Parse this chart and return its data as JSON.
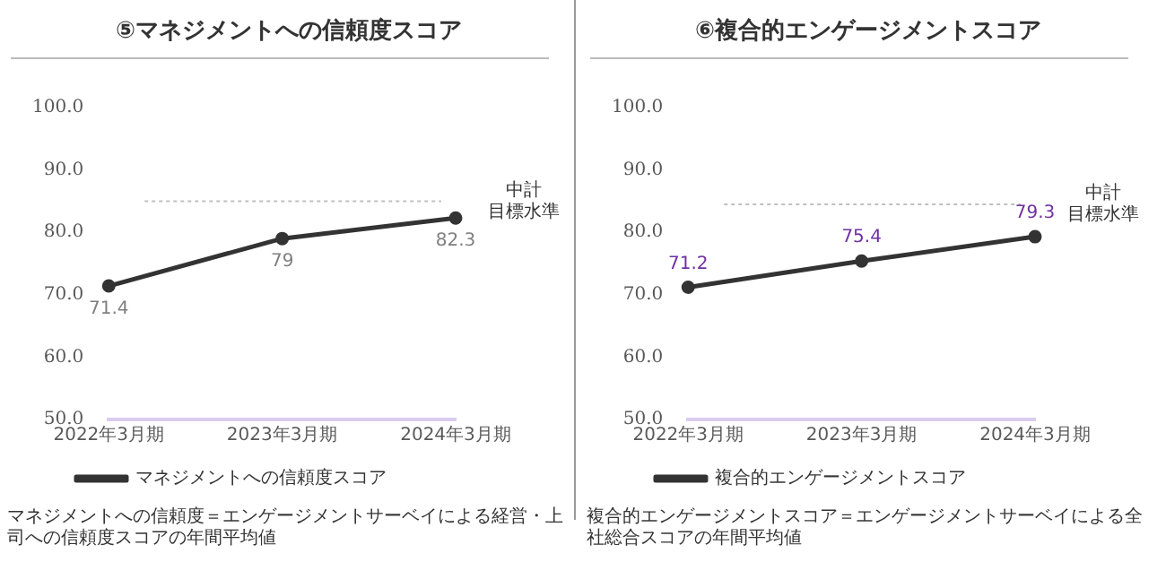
{
  "chart_data": [
    {
      "type": "line",
      "title": "⑤マネジメントへの信頼度スコア",
      "categories": [
        "2022年3月期",
        "2023年3月期",
        "2024年3月期"
      ],
      "series": [
        {
          "name": "マネジメントへの信頼度スコア",
          "color": "#333333",
          "values": [
            71.4,
            79,
            82.3
          ]
        }
      ],
      "ylim": [
        50,
        100
      ],
      "yticks": [
        {
          "value": 50,
          "label": "50.0"
        },
        {
          "value": 60,
          "label": "60.0"
        },
        {
          "value": 70,
          "label": "70.0"
        },
        {
          "value": 80,
          "label": "80.0"
        },
        {
          "value": 90,
          "label": "90.0"
        },
        {
          "value": 100,
          "label": "100.0"
        }
      ],
      "grid": false,
      "legend": "bottom",
      "marker": "circle",
      "data_labels": true,
      "ref_lines": [
        {
          "axis": "y",
          "value": 85,
          "label": "中計目標水準",
          "color": "#bfbfbf",
          "line_style": "dotted"
        }
      ],
      "annotations": [
        "マネジメントへの信頼度＝エンゲージメントサーベイによる経営・上司への信頼度スコアの年間平均値"
      ]
    },
    {
      "type": "line",
      "title": "⑥複合的エンゲージメントスコア",
      "categories": [
        "2022年3月期",
        "2023年3月期",
        "2024年3月期"
      ],
      "series": [
        {
          "name": "複合的エンゲージメントスコア",
          "color": "#333333",
          "values": [
            71.2,
            75.4,
            79.3
          ]
        }
      ],
      "ylim": [
        50,
        100
      ],
      "yticks": [
        {
          "value": 50,
          "label": "50.0"
        },
        {
          "value": 60,
          "label": "60.0"
        },
        {
          "value": 70,
          "label": "70.0"
        },
        {
          "value": 80,
          "label": "80.0"
        },
        {
          "value": 90,
          "label": "90.0"
        },
        {
          "value": 100,
          "label": "100.0"
        }
      ],
      "grid": false,
      "legend": "bottom",
      "marker": "circle",
      "data_labels": true,
      "ref_lines": [
        {
          "axis": "y",
          "value": 84.5,
          "label": "中計目標水準",
          "color": "#bfbfbf",
          "line_style": "dotted"
        }
      ],
      "annotations": [
        "複合的エンゲージメントスコア＝エンゲージメントサーベイによる全社総合スコアの年間平均値"
      ]
    }
  ]
}
